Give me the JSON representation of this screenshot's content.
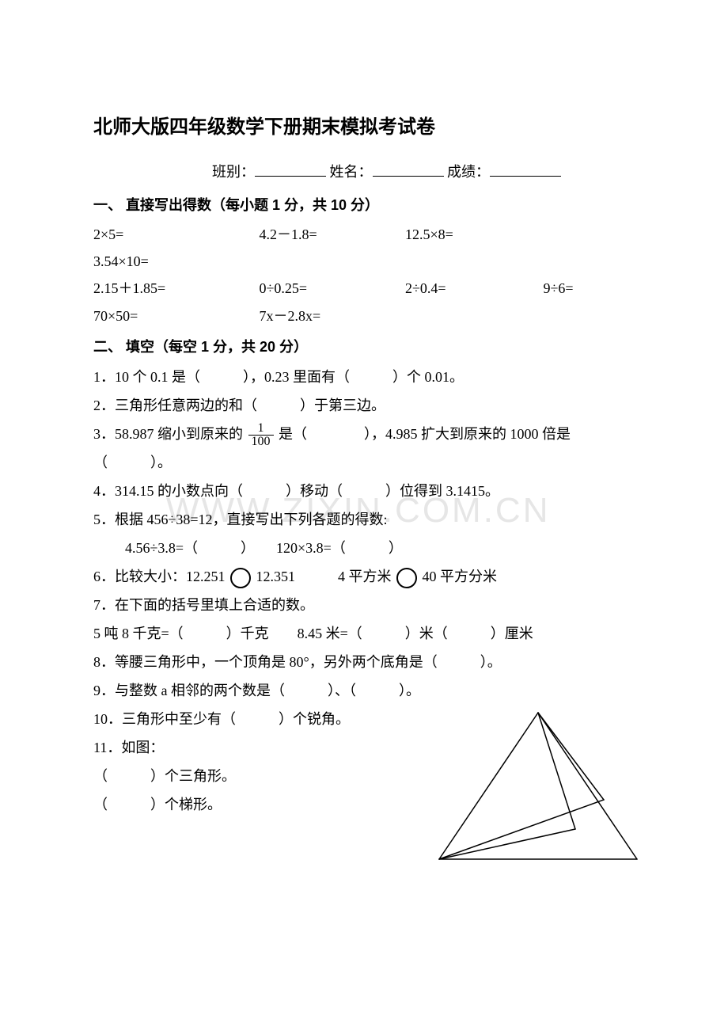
{
  "title": "北师大版四年级数学下册期末模拟考试卷",
  "header": {
    "class_label": "班别：",
    "name_label": "姓名：",
    "score_label": "成绩："
  },
  "s1": {
    "head": "一、 直接写出得数（每小题 1 分，共 10 分）",
    "row1": {
      "a": "2×5=",
      "b": "4.2－1.8=",
      "c": "12.5×8=",
      "d": "3.54×10="
    },
    "row2": {
      "a": "2.15＋1.85=",
      "b": "0÷0.25=",
      "c": "2÷0.4=",
      "d": "9÷6="
    },
    "row3": {
      "a": "70×50=",
      "b": "7x－2.8x="
    }
  },
  "s2": {
    "head": "二、 填空（每空 1 分，共 20 分）",
    "q1": "1．10 个 0.1 是（　　　），0.23 里面有（　　　）个 0.01。",
    "q2": "2．三角形任意两边的和（　　　）于第三边。",
    "q3a": "3．58.987 缩小到原来的",
    "q3b": "是（　　　　），4.985 扩大到原来的 1000 倍是",
    "q3c": "（　　　）。",
    "q4": "4．314.15 的小数点向（　　　）移动（　　　）位得到 3.1415。",
    "q5a": "5．根据 456÷38=12，直接写出下列各题的得数:",
    "q5b": "4.56÷3.8=（　　　）　　120×3.8=（　　　）",
    "q6a": "6．比较大小：12.251",
    "q6b": "12.351　　　4 平方米",
    "q6c": "40 平方分米",
    "q7": "7．在下面的括号里填上合适的数。",
    "q7u": "5 吨 8 千克=（　　　）千克　　8.45 米=（　　　）米（　　　）厘米",
    "q8": "8．等腰三角形中，一个顶角是 80°，另外两个底角是（　　　）。",
    "q9": "9．与整数 a 相邻的两个数是（　　　）、（　　　）。",
    "q10": "10．三角形中至少有（　　　）个锐角。",
    "q11": "11．如图：",
    "q11a": "（　　　）个三角形。",
    "q11b": "（　　　）个梯形。"
  },
  "frac": {
    "num": "1",
    "den": "100"
  },
  "watermark": "WWW.ZIXIN.COM.CN",
  "figure": {
    "stroke": "#000000",
    "stroke_width": 1.5,
    "background": "#ffffff",
    "apex": [
      130,
      5
    ],
    "baseL": [
      5,
      190
    ],
    "baseR": [
      255,
      190
    ],
    "inner_lines": [
      [
        [
          130,
          5
        ],
        [
          177,
          152
        ]
      ],
      [
        [
          130,
          5
        ],
        [
          213,
          115
        ]
      ],
      [
        [
          5,
          190
        ],
        [
          177,
          152
        ]
      ],
      [
        [
          5,
          190
        ],
        [
          213,
          115
        ]
      ]
    ]
  }
}
